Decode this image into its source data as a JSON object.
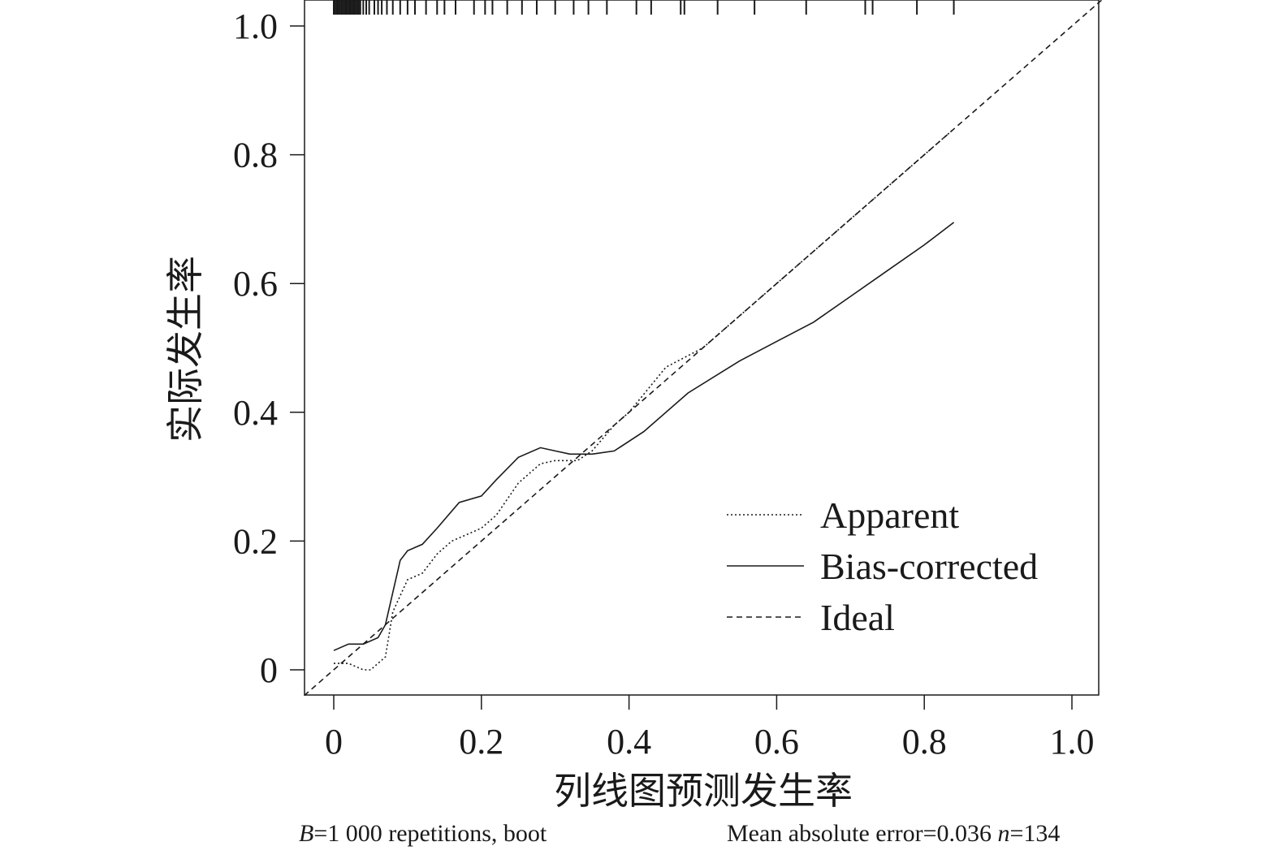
{
  "chart_data": {
    "type": "line",
    "xlabel": "列线图预测发生率",
    "ylabel": "实际发生率",
    "xlim": [
      -0.04,
      1.04
    ],
    "ylim": [
      -0.04,
      1.04
    ],
    "x_ticks": [
      0,
      0.2,
      0.4,
      0.6,
      0.8,
      1.0
    ],
    "x_tick_labels": [
      "0",
      "0.2",
      "0.4",
      "0.6",
      "0.8",
      "1.0"
    ],
    "y_ticks": [
      0,
      0.2,
      0.4,
      0.6,
      0.8,
      1.0
    ],
    "y_tick_labels": [
      "0",
      "0.2",
      "0.4",
      "0.6",
      "0.8",
      "1.0"
    ],
    "grid": false,
    "legend_position": "bottom-right",
    "series": [
      {
        "name": "Apparent",
        "style": "dotted",
        "x": [
          0.0,
          0.02,
          0.04,
          0.05,
          0.07,
          0.08,
          0.1,
          0.12,
          0.14,
          0.16,
          0.18,
          0.2,
          0.22,
          0.25,
          0.28,
          0.3,
          0.33,
          0.35,
          0.38,
          0.4,
          0.45,
          0.5,
          0.55,
          0.6,
          0.65,
          0.7,
          0.75,
          0.8,
          0.84
        ],
        "y": [
          0.01,
          0.01,
          0.0,
          0.0,
          0.02,
          0.09,
          0.14,
          0.15,
          0.18,
          0.2,
          0.21,
          0.22,
          0.24,
          0.29,
          0.32,
          0.325,
          0.325,
          0.34,
          0.38,
          0.4,
          0.47,
          0.5,
          0.55,
          0.6,
          0.65,
          0.7,
          0.75,
          0.8,
          0.84
        ]
      },
      {
        "name": "Bias-corrected",
        "style": "solid",
        "x": [
          0.0,
          0.02,
          0.04,
          0.06,
          0.07,
          0.08,
          0.09,
          0.1,
          0.12,
          0.14,
          0.17,
          0.2,
          0.22,
          0.25,
          0.28,
          0.3,
          0.32,
          0.35,
          0.38,
          0.42,
          0.48,
          0.55,
          0.6,
          0.65,
          0.7,
          0.75,
          0.8,
          0.84
        ],
        "y": [
          0.03,
          0.04,
          0.04,
          0.05,
          0.07,
          0.12,
          0.17,
          0.185,
          0.195,
          0.22,
          0.26,
          0.27,
          0.295,
          0.33,
          0.345,
          0.34,
          0.335,
          0.335,
          0.34,
          0.37,
          0.43,
          0.48,
          0.51,
          0.54,
          0.58,
          0.62,
          0.66,
          0.695
        ]
      },
      {
        "name": "Ideal",
        "style": "dashed",
        "x": [
          -0.04,
          1.04
        ],
        "y": [
          -0.04,
          1.04
        ]
      }
    ],
    "rug_x": [
      0.0,
      0.002,
      0.004,
      0.006,
      0.008,
      0.01,
      0.012,
      0.014,
      0.016,
      0.018,
      0.02,
      0.022,
      0.024,
      0.026,
      0.028,
      0.03,
      0.032,
      0.034,
      0.036,
      0.04,
      0.044,
      0.048,
      0.055,
      0.06,
      0.065,
      0.072,
      0.08,
      0.09,
      0.1,
      0.11,
      0.125,
      0.14,
      0.15,
      0.165,
      0.19,
      0.205,
      0.215,
      0.235,
      0.255,
      0.275,
      0.3,
      0.325,
      0.345,
      0.37,
      0.41,
      0.43,
      0.47,
      0.475,
      0.52,
      0.57,
      0.64,
      0.72,
      0.73,
      0.79,
      0.84
    ]
  },
  "footer": {
    "left_italic": "B",
    "left_text": "=1 000 repetitions, boot",
    "right_text": "Mean absolute error=0.036 ",
    "right_italic": "n",
    "right_text2": "=134"
  }
}
